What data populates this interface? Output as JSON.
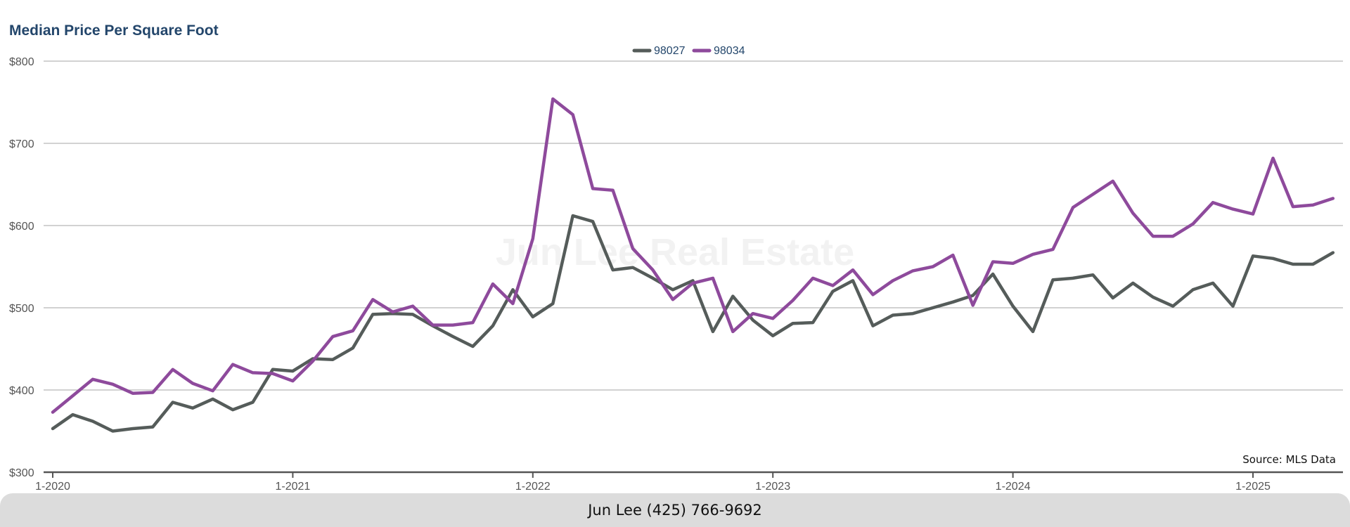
{
  "chart_data": {
    "type": "line",
    "title": "Median Price Per Square Foot",
    "watermark": "Jun Lee Real Estate",
    "source": "Source: MLS Data",
    "ylim": [
      300,
      800
    ],
    "y_ticks": [
      300,
      400,
      500,
      600,
      700,
      800
    ],
    "y_tick_labels": [
      "$300",
      "$400",
      "$500",
      "$600",
      "$700",
      "$800"
    ],
    "x_ticks": [
      "2020-01",
      "2021-01",
      "2022-01",
      "2023-01",
      "2024-01",
      "2025-01"
    ],
    "x_tick_labels": [
      "1-2020",
      "1-2021",
      "1-2022",
      "1-2023",
      "1-2024",
      "1-2025"
    ],
    "grid": "horizontal",
    "legend_position": "top-center",
    "x": [
      "2020-01",
      "2020-02",
      "2020-03",
      "2020-04",
      "2020-05",
      "2020-06",
      "2020-07",
      "2020-08",
      "2020-09",
      "2020-10",
      "2020-11",
      "2020-12",
      "2021-01",
      "2021-02",
      "2021-03",
      "2021-04",
      "2021-05",
      "2021-06",
      "2021-07",
      "2021-08",
      "2021-09",
      "2021-10",
      "2021-11",
      "2021-12",
      "2022-01",
      "2022-02",
      "2022-03",
      "2022-04",
      "2022-05",
      "2022-06",
      "2022-07",
      "2022-08",
      "2022-09",
      "2022-10",
      "2022-11",
      "2022-12",
      "2023-01",
      "2023-02",
      "2023-03",
      "2023-04",
      "2023-05",
      "2023-06",
      "2023-07",
      "2023-08",
      "2023-09",
      "2023-10",
      "2023-11",
      "2023-12",
      "2024-01",
      "2024-02",
      "2024-03",
      "2024-04",
      "2024-05",
      "2024-06",
      "2024-07",
      "2024-08",
      "2024-09",
      "2024-10",
      "2024-11",
      "2024-12",
      "2025-01",
      "2025-02",
      "2025-03",
      "2025-04",
      "2025-05"
    ],
    "series": [
      {
        "name": "98027",
        "color": "#555c5a",
        "values": [
          353,
          370,
          362,
          350,
          353,
          355,
          385,
          378,
          389,
          376,
          385,
          425,
          423,
          438,
          437,
          451,
          492,
          493,
          492,
          478,
          465,
          453,
          478,
          522,
          489,
          505,
          612,
          605,
          546,
          549,
          536,
          522,
          533,
          471,
          514,
          485,
          466,
          481,
          482,
          520,
          533,
          478,
          491,
          493,
          500,
          507,
          515,
          541,
          502,
          471,
          534,
          536,
          540,
          512,
          530,
          513,
          502,
          522,
          530,
          502,
          563,
          560,
          553,
          553,
          567
        ]
      },
      {
        "name": "98034",
        "color": "#8e4a9c",
        "values": [
          373,
          393,
          413,
          407,
          396,
          397,
          425,
          408,
          399,
          431,
          421,
          420,
          411,
          435,
          465,
          472,
          510,
          495,
          502,
          479,
          479,
          482,
          529,
          505,
          584,
          754,
          735,
          645,
          643,
          572,
          546,
          510,
          530,
          536,
          471,
          493,
          487,
          509,
          536,
          527,
          546,
          516,
          533,
          545,
          550,
          564,
          503,
          556,
          554,
          565,
          571,
          622,
          638,
          654,
          615,
          587,
          587,
          602,
          628,
          620,
          614,
          682,
          623,
          625,
          633
        ]
      }
    ]
  },
  "footer": {
    "contact": "Jun Lee (425) 766-9692"
  }
}
